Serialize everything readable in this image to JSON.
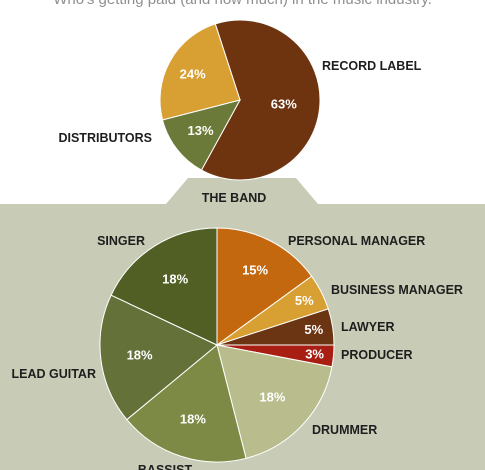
{
  "subtitle": "Who's getting paid (and how much) in the music industry.",
  "chart_data": [
    {
      "type": "pie",
      "categories": [
        "RECORD LABEL",
        "THE BAND",
        "DISTRIBUTORS"
      ],
      "values": [
        63,
        13,
        24
      ],
      "data_labels": [
        "63%",
        "13%",
        "24%"
      ],
      "colors": [
        "#6e3410",
        "#6b7a38",
        "#d8a033"
      ]
    },
    {
      "type": "pie",
      "categories": [
        "PERSONAL MANAGER",
        "BUSINESS MANAGER",
        "LAWYER",
        "PRODUCER",
        "DRUMMER",
        "BASSIST",
        "LEAD GUITAR",
        "SINGER"
      ],
      "values": [
        15,
        5,
        5,
        3,
        18,
        18,
        18,
        18
      ],
      "data_labels": [
        "15%",
        "5%",
        "5%",
        "3%",
        "18%",
        "18%",
        "18%",
        "18%"
      ],
      "colors": [
        "#c4680f",
        "#d8a033",
        "#6b3412",
        "#a81e12",
        "#b9bd8d",
        "#7d8a45",
        "#64723a",
        "#525f24"
      ]
    }
  ]
}
